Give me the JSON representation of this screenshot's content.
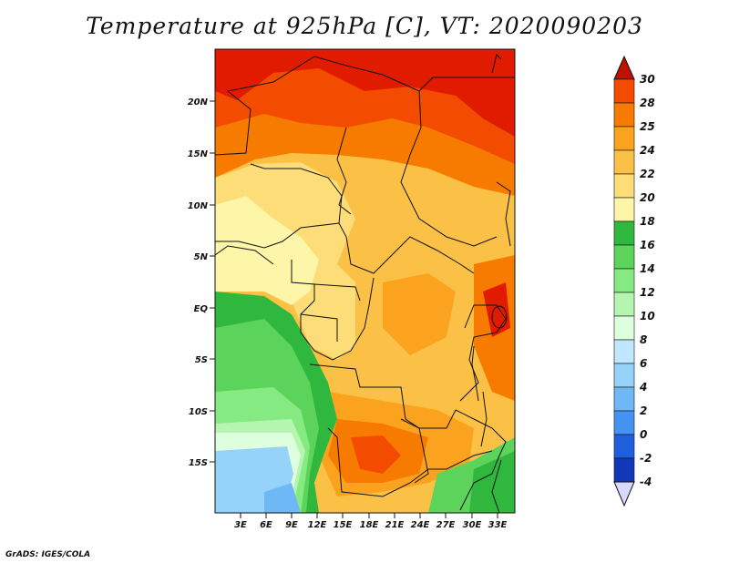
{
  "title": "Temperature at 925hPa [C], VT: 2020090203",
  "footer": "GrADS: IGES/COLA",
  "lat_ticks": [
    "20N",
    "15N",
    "10N",
    "5N",
    "EQ",
    "5S",
    "10S",
    "15S"
  ],
  "lon_ticks": [
    "3E",
    "6E",
    "9E",
    "12E",
    "15E",
    "18E",
    "21E",
    "24E",
    "27E",
    "30E",
    "33E"
  ],
  "colorbar": {
    "labels": [
      "30",
      "28",
      "25",
      "24",
      "22",
      "20",
      "18",
      "16",
      "14",
      "12",
      "10",
      "8",
      "6",
      "4",
      "2",
      "0",
      "-2",
      "-4"
    ],
    "colors": [
      "#e11b00",
      "#f34b00",
      "#f77b00",
      "#fba31e",
      "#fbc146",
      "#fddd78",
      "#fdf5a8",
      "#2fb83d",
      "#5cd45b",
      "#86ea82",
      "#b6f5b0",
      "#ddffdd",
      "#bfe7ff",
      "#96d3fb",
      "#6eb9f5",
      "#4493f1",
      "#1f5fdd",
      "#1038b8",
      "#07207a"
    ],
    "top_arrow_color": "#c21000",
    "bottom_arrow_color": "#d9d9ff"
  }
}
